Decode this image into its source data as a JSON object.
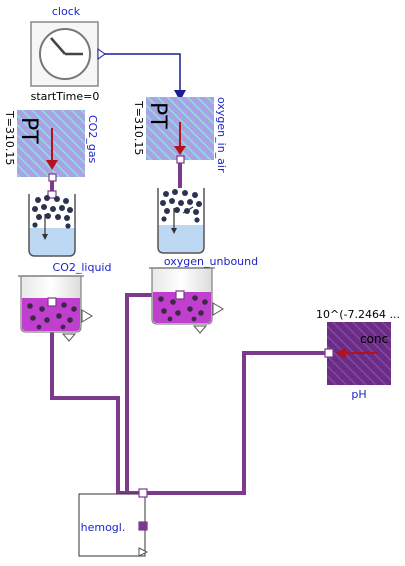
{
  "components": {
    "clock": {
      "name": "clock",
      "param": "startTime=0"
    },
    "co2_gas": {
      "name": "CO2_gas",
      "param": "T=310.15",
      "symbol": "PT"
    },
    "oxygen_in_air": {
      "name": "oxygen_in_air",
      "param": "T=310.15",
      "symbol": "PT"
    },
    "co2_liquid": {
      "name": "CO2_liquid"
    },
    "oxygen_unbound": {
      "name": "oxygen_unbound"
    },
    "ph": {
      "name": "pH",
      "value": "10^(-7.2464 ...",
      "port_label": "conc"
    },
    "hemoglobin": {
      "name": "hemogl."
    }
  },
  "colors": {
    "wire_purple": "#7b3a8c",
    "label_blue": "#1c25c8",
    "gas_cyan": "#86e3dc",
    "gas_lilac": "#a9a3e6",
    "liquid_blue": "#bcd8f3",
    "solution_magenta": "#c03fce",
    "ph_purple": "#6a2d86",
    "arrow_red": "#b3111c",
    "signal_navy": "#1a1e96"
  }
}
